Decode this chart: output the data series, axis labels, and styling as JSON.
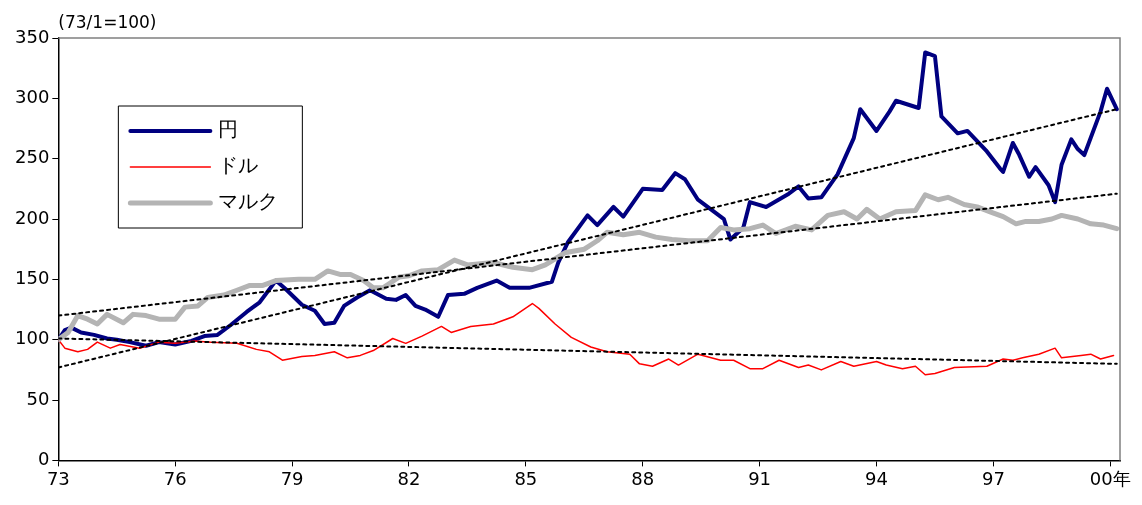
{
  "chart_data": {
    "type": "line",
    "ylabel": "(73/1=100)",
    "xlim": [
      "1973-01",
      "2000-04"
    ],
    "ylim": [
      0,
      350
    ],
    "yticks": [
      0,
      50,
      100,
      150,
      200,
      250,
      300,
      350
    ],
    "xticks": [
      {
        "value": "1973",
        "label": "73"
      },
      {
        "value": "1976",
        "label": "76"
      },
      {
        "value": "1979",
        "label": "79"
      },
      {
        "value": "1982",
        "label": "82"
      },
      {
        "value": "1985",
        "label": "85"
      },
      {
        "value": "1988",
        "label": "88"
      },
      {
        "value": "1991",
        "label": "91"
      },
      {
        "value": "1994",
        "label": "94"
      },
      {
        "value": "1997",
        "label": "97"
      },
      {
        "value": "2000",
        "label": "00年"
      }
    ],
    "grid": false,
    "legend": "top left",
    "marker": "none",
    "series": [
      {
        "name": "円",
        "color": "#000080",
        "x": [
          "1973-01",
          "1973-03",
          "1973-05",
          "1973-08",
          "1973-12",
          "1974-04",
          "1974-07",
          "1974-11",
          "1975-04",
          "1975-08",
          "1976-01",
          "1976-06",
          "1976-10",
          "1977-02",
          "1977-06",
          "1977-11",
          "1978-03",
          "1978-08",
          "1978-11",
          "1979-04",
          "1979-08",
          "1979-11",
          "1980-02",
          "1980-05",
          "1980-09",
          "1981-01",
          "1981-06",
          "1981-09",
          "1981-12",
          "1982-03",
          "1982-06",
          "1982-10",
          "1983-01",
          "1983-06",
          "1983-10",
          "1984-04",
          "1984-08",
          "1985-02",
          "1985-09",
          "1985-11",
          "1986-02",
          "1986-08",
          "1986-11",
          "1987-04",
          "1987-07",
          "1988-01",
          "1988-07",
          "1988-11",
          "1989-02",
          "1989-06",
          "1990-02",
          "1990-04",
          "1990-08",
          "1990-10",
          "1991-03",
          "1991-10",
          "1992-01",
          "1992-04",
          "1992-08",
          "1993-01",
          "1993-06",
          "1993-08",
          "1994-01",
          "1994-05",
          "1994-07",
          "1995-02",
          "1995-04",
          "1995-07",
          "1995-09",
          "1996-02",
          "1996-05",
          "1996-11",
          "1997-03",
          "1997-04",
          "1997-07",
          "1997-09",
          "1997-12",
          "1998-02",
          "1998-06",
          "1998-08",
          "1998-10",
          "1999-01",
          "1999-03",
          "1999-05",
          "1999-10",
          "1999-12",
          "2000-03"
        ],
        "values": [
          100,
          108,
          110,
          106,
          104,
          101,
          100,
          98,
          95,
          98,
          96,
          99,
          103,
          104,
          112,
          123,
          131,
          149,
          142,
          129,
          124,
          113,
          114,
          128,
          135,
          141,
          134,
          133,
          137,
          128,
          125,
          119,
          137,
          138,
          143,
          149,
          143,
          143,
          148,
          164,
          181,
          203,
          195,
          210,
          202,
          225,
          224,
          238,
          233,
          216,
          200,
          183,
          193,
          214,
          210,
          221,
          227,
          217,
          218,
          237,
          267,
          291,
          273,
          289,
          298,
          292,
          338,
          335,
          285,
          271,
          273,
          256,
          242,
          239,
          263,
          253,
          235,
          243,
          228,
          214,
          245,
          266,
          258,
          253,
          289,
          308,
          291
        ]
      },
      {
        "name": "ドル",
        "color": "#ff0000",
        "x": [
          "1973-01",
          "1973-03",
          "1973-07",
          "1973-10",
          "1974-01",
          "1974-05",
          "1974-08",
          "1975-02",
          "1975-08",
          "1976-01",
          "1976-07",
          "1976-12",
          "1977-08",
          "1978-02",
          "1978-06",
          "1978-10",
          "1979-04",
          "1979-08",
          "1980-02",
          "1980-06",
          "1980-10",
          "1981-02",
          "1981-08",
          "1981-12",
          "1982-05",
          "1982-11",
          "1983-02",
          "1983-08",
          "1984-03",
          "1984-09",
          "1985-03",
          "1985-05",
          "1985-10",
          "1986-03",
          "1986-09",
          "1987-02",
          "1987-09",
          "1987-12",
          "1988-04",
          "1988-09",
          "1988-12",
          "1989-06",
          "1990-01",
          "1990-05",
          "1990-10",
          "1991-02",
          "1991-07",
          "1992-01",
          "1992-04",
          "1992-08",
          "1993-02",
          "1993-06",
          "1994-01",
          "1994-04",
          "1994-09",
          "1995-01",
          "1995-04",
          "1995-07",
          "1996-01",
          "1996-11",
          "1997-04",
          "1997-07",
          "1997-10",
          "1998-03",
          "1998-08",
          "1998-10",
          "1999-04",
          "1999-07",
          "1999-10",
          "2000-02"
        ],
        "values": [
          100,
          93,
          90,
          92,
          98,
          93,
          96,
          93,
          98,
          97,
          99,
          98,
          97,
          92,
          90,
          83,
          86,
          87,
          90,
          85,
          87,
          91,
          101,
          97,
          103,
          111,
          106,
          111,
          113,
          119,
          130,
          126,
          113,
          102,
          94,
          90,
          88,
          80,
          78,
          84,
          79,
          88,
          83,
          83,
          76,
          76,
          83,
          77,
          79,
          75,
          82,
          78,
          82,
          79,
          76,
          78,
          71,
          72,
          77,
          78,
          84,
          83,
          85,
          88,
          93,
          85,
          87,
          88,
          84,
          87
        ]
      },
      {
        "name": "マルク",
        "color": "#b4b4b4",
        "x": [
          "1973-01",
          "1973-04",
          "1973-07",
          "1973-10",
          "1974-01",
          "1974-04",
          "1974-09",
          "1974-12",
          "1975-04",
          "1975-08",
          "1976-01",
          "1976-04",
          "1976-08",
          "1976-11",
          "1977-04",
          "1977-08",
          "1977-12",
          "1978-04",
          "1978-08",
          "1979-03",
          "1979-08",
          "1979-12",
          "1980-04",
          "1980-07",
          "1980-11",
          "1981-02",
          "1981-05",
          "1981-10",
          "1982-01",
          "1982-05",
          "1982-10",
          "1983-03",
          "1983-07",
          "1984-03",
          "1984-09",
          "1985-03",
          "1985-07",
          "1986-01",
          "1986-07",
          "1986-11",
          "1987-02",
          "1987-07",
          "1987-12",
          "1988-05",
          "1988-10",
          "1989-03",
          "1989-09",
          "1990-01",
          "1990-05",
          "1990-10",
          "1991-02",
          "1991-06",
          "1991-12",
          "1992-05",
          "1992-10",
          "1993-03",
          "1993-07",
          "1993-10",
          "1994-02",
          "1994-07",
          "1995-01",
          "1995-04",
          "1995-08",
          "1995-11",
          "1996-04",
          "1996-08",
          "1996-12",
          "1997-04",
          "1997-08",
          "1997-11",
          "1998-03",
          "1998-07",
          "1998-10",
          "1999-03",
          "1999-07",
          "1999-11",
          "2000-03"
        ],
        "values": [
          100,
          106,
          120,
          117,
          113,
          121,
          114,
          121,
          120,
          117,
          117,
          127,
          128,
          135,
          137,
          141,
          145,
          145,
          149,
          150,
          150,
          157,
          154,
          154,
          149,
          143,
          143,
          152,
          153,
          157,
          158,
          166,
          162,
          164,
          160,
          158,
          162,
          172,
          175,
          182,
          189,
          187,
          189,
          185,
          183,
          182,
          182,
          193,
          191,
          192,
          195,
          188,
          194,
          191,
          203,
          206,
          200,
          208,
          200,
          206,
          207,
          220,
          216,
          218,
          212,
          210,
          206,
          202,
          196,
          198,
          198,
          200,
          203,
          200,
          196,
          195,
          192
        ]
      },
      {
        "type": "line",
        "color": "#000000",
        "line_style": "dotted",
        "x": [
          "1973-01",
          "2000-03"
        ],
        "values": [
          77,
          291
        ]
      },
      {
        "type": "line",
        "color": "#000000",
        "line_style": "dotted",
        "x": [
          "1973-01",
          "2000-03"
        ],
        "values": [
          120,
          221
        ]
      },
      {
        "type": "line",
        "color": "#000000",
        "line_style": "dotted",
        "x": [
          "1973-01",
          "2000-03"
        ],
        "values": [
          101,
          80
        ]
      }
    ]
  }
}
